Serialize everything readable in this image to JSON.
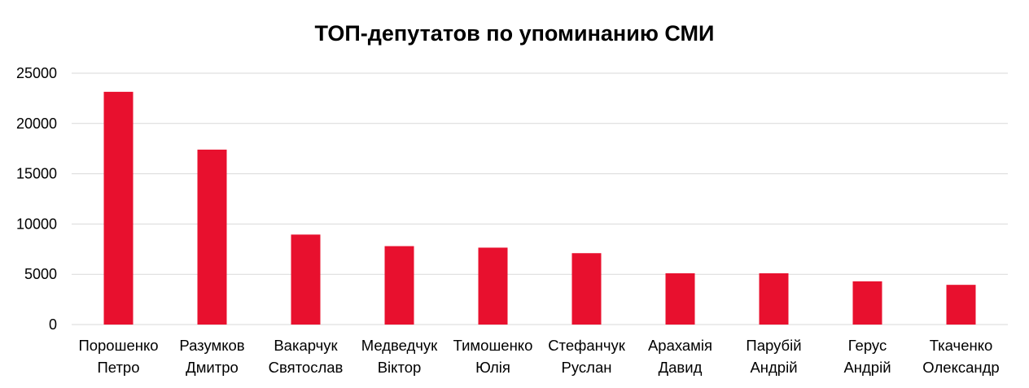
{
  "chart_data": {
    "type": "bar",
    "title": "ТОП-депутатов по упоминанию СМИ",
    "xlabel": "",
    "ylabel": "",
    "categories": [
      "Порошенко Петро",
      "Разумков Дмитро",
      "Вакарчук Святослав",
      "Медведчук Віктор",
      "Тимошенко Юлія",
      "Стефанчук Руслан",
      "Арахамія Давид",
      "Парубій Андрій",
      "Герус Андрій",
      "Ткаченко Олександр"
    ],
    "category_lines": [
      [
        "Порошенко",
        "Петро"
      ],
      [
        "Разумков",
        "Дмитро"
      ],
      [
        "Вакарчук",
        "Святослав"
      ],
      [
        "Медведчук",
        "Віктор"
      ],
      [
        "Тимошенко",
        "Юлія"
      ],
      [
        "Стефанчук",
        "Руслан"
      ],
      [
        "Арахамія",
        "Давид"
      ],
      [
        "Парубій",
        "Андрій"
      ],
      [
        "Герус",
        "Андрій"
      ],
      [
        "Ткаченко",
        "Олександр"
      ]
    ],
    "values": [
      23150,
      17400,
      8950,
      7800,
      7650,
      7100,
      5100,
      5100,
      4300,
      3950
    ],
    "ylim": [
      0,
      25000
    ],
    "yticks": [
      "0",
      "5000",
      "10000",
      "15000",
      "20000",
      "25000"
    ],
    "grid": true,
    "legend": "none",
    "bar_color": "#e8102e"
  }
}
